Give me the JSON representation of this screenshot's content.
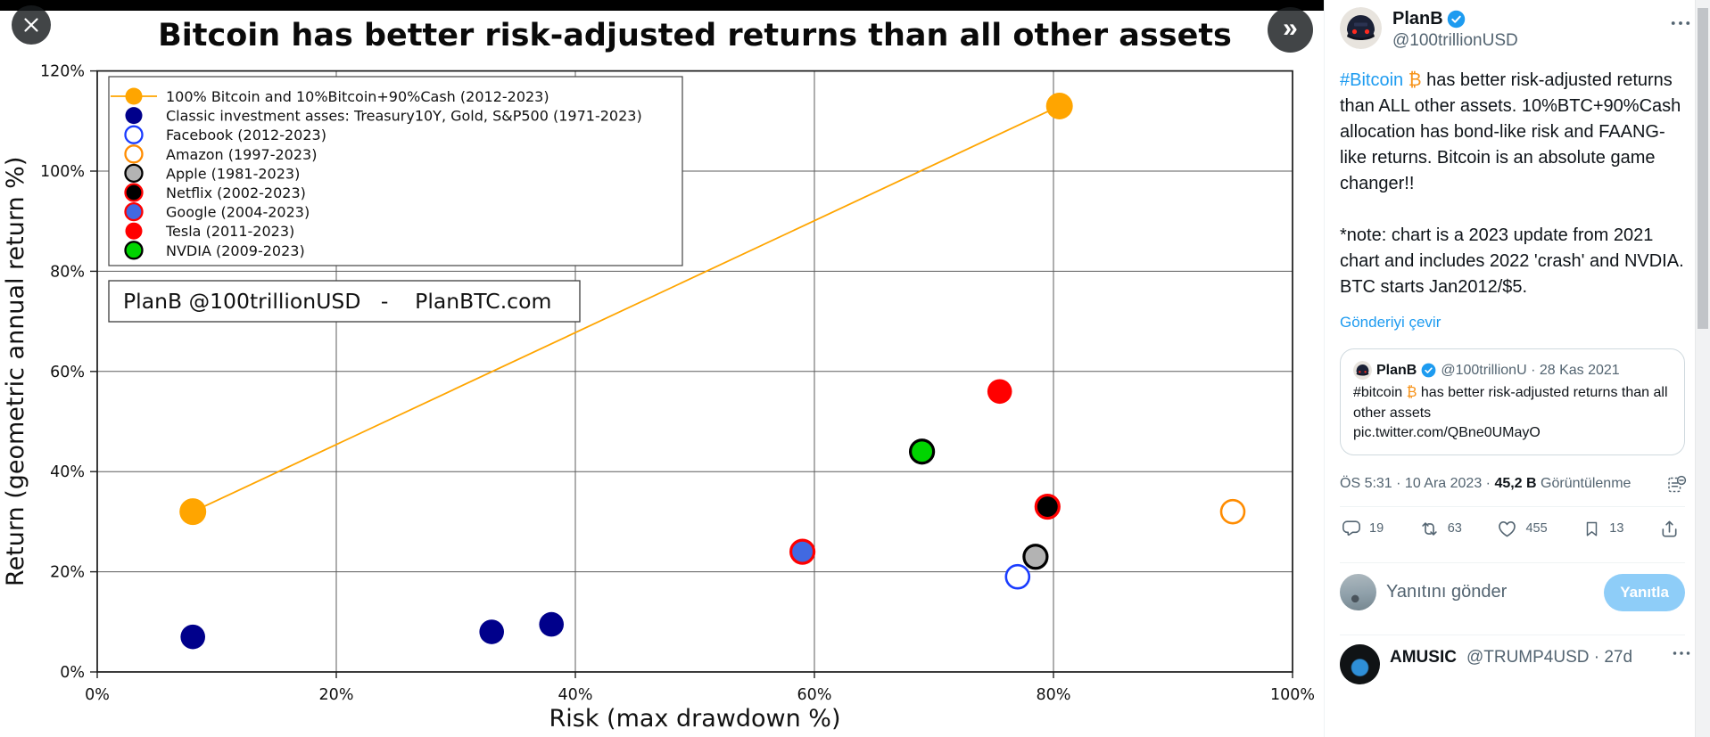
{
  "colors": {
    "accent_blue": "#1d9bf0",
    "bitcoin_orange": "#f7931a",
    "text_dark": "#0f1419",
    "text_gray": "#536471",
    "reply_button_bg": "#8ecdf8"
  },
  "lightbox": {
    "next_icon_glyph": "»"
  },
  "chart_data": {
    "type": "scatter",
    "title": "Bitcoin has better risk-adjusted returns than all other assets",
    "xlabel": "Risk (max drawdown %)",
    "ylabel": "Return (geometric annual return %)",
    "xlim": [
      0,
      100
    ],
    "ylim": [
      0,
      120
    ],
    "x_ticks": [
      "0%",
      "20%",
      "40%",
      "60%",
      "80%",
      "100%"
    ],
    "y_ticks": [
      "0%",
      "20%",
      "40%",
      "60%",
      "80%",
      "100%",
      "120%"
    ],
    "grid": true,
    "legend_position": "upper left",
    "annotation_box": "PlanB @100trillionUSD   -    PlanBTC.com",
    "series": [
      {
        "label": "100% Bitcoin and 10%Bitcoin+90%Cash (2012-2023)",
        "fill": "#FFA500",
        "edge": "#FFA500",
        "line": true,
        "points": [
          [
            8,
            32
          ],
          [
            80.5,
            113
          ]
        ]
      },
      {
        "label": "Classic investment asses: Treasury10Y, Gold, S&P500 (1971-2023)",
        "fill": "#00008B",
        "edge": "#00008B",
        "points": [
          [
            8,
            7
          ],
          [
            33,
            8
          ],
          [
            38,
            9.5
          ]
        ]
      },
      {
        "label": "Facebook (2012-2023)",
        "fill": "#FFFFFF",
        "edge": "#1A3CFF",
        "points": [
          [
            77,
            19
          ]
        ]
      },
      {
        "label": "Amazon (1997-2023)",
        "fill": "#FFFFFF",
        "edge": "#FF8C00",
        "points": [
          [
            95,
            32
          ]
        ]
      },
      {
        "label": "Apple (1981-2023)",
        "fill": "#B3B3B3",
        "edge": "#000000",
        "points": [
          [
            78.5,
            23
          ]
        ]
      },
      {
        "label": "Netflix (2002-2023)",
        "fill": "#000000",
        "edge": "#FF0000",
        "points": [
          [
            79.5,
            33
          ]
        ]
      },
      {
        "label": "Google (2004-2023)",
        "fill": "#4169E1",
        "edge": "#FF0000",
        "points": [
          [
            59,
            24
          ]
        ]
      },
      {
        "label": "Tesla (2011-2023)",
        "fill": "#FF0000",
        "edge": "#FF0000",
        "points": [
          [
            75.5,
            56
          ]
        ]
      },
      {
        "label": "NVDIA (2009-2023)",
        "fill": "#00D400",
        "edge": "#000000",
        "points": [
          [
            69,
            44
          ]
        ]
      }
    ]
  },
  "tweet": {
    "author": {
      "name": "PlanB",
      "handle": "@100trillionUSD"
    },
    "body": {
      "hashtag": "#Bitcoin",
      "bitcoin_symbol": "₿",
      "main": "has better risk-adjusted returns than ALL other assets. 10%BTC+90%Cash allocation has bond-like risk and FAANG-like returns. Bitcoin is an absolute game changer!!",
      "note": "*note: chart is a 2023 update from 2021 chart and includes 2022 'crash' and NVDIA. BTC starts Jan2012/$5.",
      "translate_link": "Gönderiyi çevir"
    },
    "quote": {
      "name": "PlanB",
      "handle_date": "@100trillionU · 28 Kas 2021",
      "hashtag": "#bitcoin",
      "bitcoin_symbol": "₿",
      "text_rest": "has better risk-adjusted returns than all other assets",
      "link": "pic.twitter.com/QBne0UMayO"
    },
    "meta": {
      "time_date": "ÖS 5:31 · 10 Ara 2023 · ",
      "views_count": "45,2 B",
      "views_label": " Görüntülenme"
    },
    "actions": {
      "reply": "19",
      "repost": "63",
      "like": "455",
      "bookmark": "13"
    },
    "reply_box": {
      "placeholder": "Yanıtını gönder",
      "button": "Yanıtla"
    },
    "next_post": {
      "name": "AMUSIC",
      "handle_date": "@TRUMP4USD · 27d"
    }
  }
}
